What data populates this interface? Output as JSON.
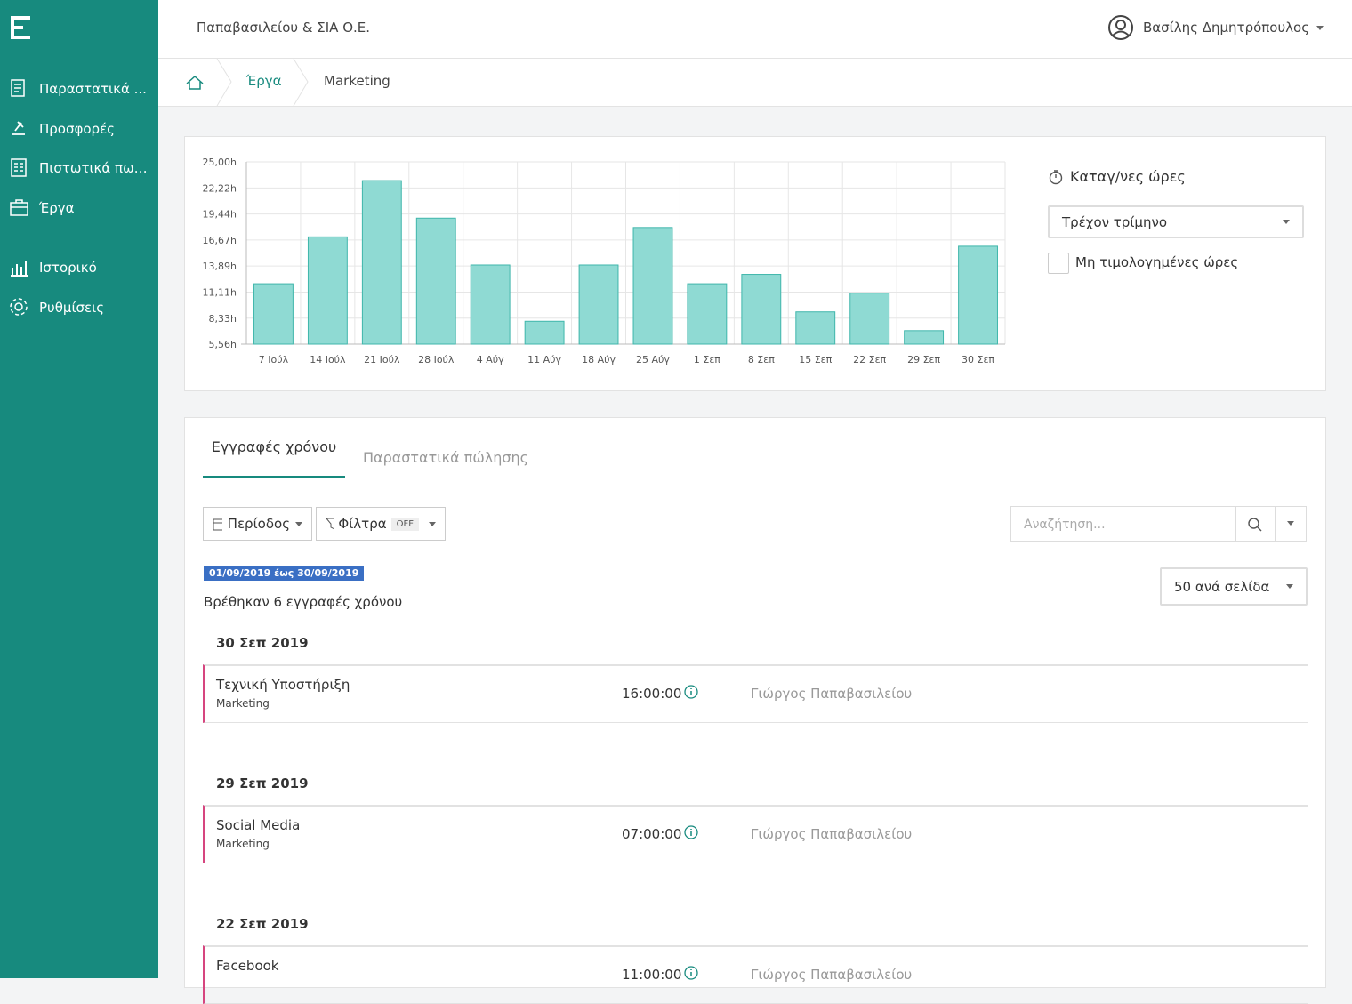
{
  "sidebar": {
    "menu": [
      "Παραστατικά ...",
      "Προσφορές",
      "Πιστωτικά πω…",
      "Έργα",
      "Ιστορικό",
      "Ρυθμίσεις"
    ]
  },
  "header": {
    "company": "Παπαβασιλείου & ΣΙΑ Ο.Ε.",
    "user": "Βασίλης Δημητρόπουλος"
  },
  "breadcrumb": [
    "Έργα",
    "Marketing"
  ],
  "chart_data": {
    "type": "bar",
    "categories": [
      "7 Ιούλ",
      "14 Ιούλ",
      "21 Ιούλ",
      "28 Ιούλ",
      "4 Αύγ",
      "11 Αύγ",
      "18 Αύγ",
      "25 Αύγ",
      "1 Σεπ",
      "8 Σεπ",
      "15 Σεπ",
      "22 Σεπ",
      "29 Σεπ",
      "30 Σεπ"
    ],
    "values": [
      12,
      17,
      23,
      19,
      14,
      8,
      14,
      18,
      12,
      13,
      9,
      11,
      7,
      16
    ],
    "color": "#8fdad3",
    "ylim": [
      5.56,
      25
    ],
    "yticks": [
      {
        "value": 5.56,
        "label": "5,56h"
      },
      {
        "value": 8.33,
        "label": "8,33h"
      },
      {
        "value": 11.11,
        "label": "11,11h"
      },
      {
        "value": 13.89,
        "label": "13,89h"
      },
      {
        "value": 16.67,
        "label": "16,67h"
      },
      {
        "value": 19.44,
        "label": "19,44h"
      },
      {
        "value": 22.22,
        "label": "22,22h"
      },
      {
        "value": 25,
        "label": "25,00h"
      }
    ],
    "grid": true
  },
  "panel": {
    "title": "Καταγ/νες ώρες",
    "select": "Τρέχον τρίμηνο",
    "checkbox": "Μη τιμολογημένες ώρες"
  },
  "tabs": [
    "Εγγραφές χρόνου",
    "Παραστατικά πώλησης"
  ],
  "toolbar": {
    "period": "Περίοδος",
    "filters": "Φίλτρα",
    "filters_state": "OFF",
    "search_placeholder": "Αναζήτηση..."
  },
  "date_range": "01/09/2019 έως 30/09/2019",
  "result_count": "Βρέθηκαν 6 εγγραφές χρόνου",
  "page_size": "50 ανά σελίδα",
  "groups": [
    {
      "date": "30 Σεπ 2019",
      "entries": [
        {
          "task": "Τεχνική Υποστήριξη",
          "project": "Marketing",
          "time": "16:00:00",
          "person": "Γιώργος Παπαβασιλείου"
        }
      ]
    },
    {
      "date": "29 Σεπ 2019",
      "entries": [
        {
          "task": "Social Media",
          "project": "Marketing",
          "time": "07:00:00",
          "person": "Γιώργος Παπαβασιλείου"
        }
      ]
    },
    {
      "date": "22 Σεπ 2019",
      "entries": [
        {
          "task": "Facebook",
          "time": "11:00:00",
          "person": "Γιώργος Παπαβασιλείου"
        }
      ]
    }
  ]
}
